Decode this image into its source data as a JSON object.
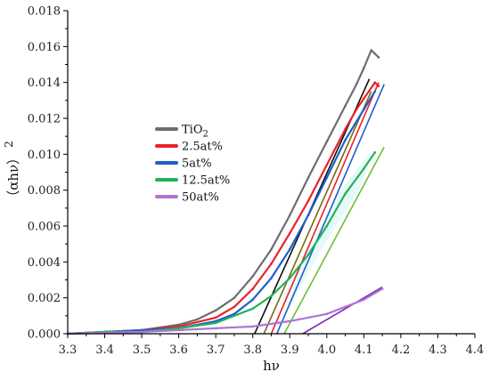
{
  "chart_data": {
    "type": "line",
    "xlabel": "hν",
    "ylabel": "（αhν）",
    "ylabel_sup": "2",
    "xlim": [
      3.3,
      4.4
    ],
    "ylim": [
      0,
      0.018
    ],
    "x_ticks": [
      3.3,
      3.4,
      3.5,
      3.6,
      3.7,
      3.8,
      3.9,
      4.0,
      4.1,
      4.2,
      4.3,
      4.4
    ],
    "y_ticks": [
      0.0,
      0.002,
      0.004,
      0.006,
      0.008,
      0.01,
      0.012,
      0.014,
      0.016,
      0.018
    ],
    "x_tick_labels": [
      "3.3",
      "3.4",
      "3.5",
      "3.6",
      "3.7",
      "3.8",
      "3.9",
      "4.0",
      "4.1",
      "4.2",
      "4.3",
      "4.4"
    ],
    "y_tick_labels": [
      "0.000",
      "0.002",
      "0.004",
      "0.006",
      "0.008",
      "0.010",
      "0.012",
      "0.014",
      "0.016",
      "0.018"
    ],
    "grid": false,
    "legend_position": "left-center",
    "series": [
      {
        "name": "TiO2",
        "label_main": "TiO",
        "label_sub": "2",
        "color": "#6e6e6e",
        "x": [
          3.3,
          3.4,
          3.5,
          3.6,
          3.65,
          3.7,
          3.75,
          3.8,
          3.85,
          3.9,
          3.95,
          4.0,
          4.05,
          4.08,
          4.1,
          4.12,
          4.13,
          4.14
        ],
        "y": [
          0.0,
          0.0001,
          0.0002,
          0.0005,
          0.0008,
          0.0013,
          0.002,
          0.0032,
          0.0047,
          0.0066,
          0.0087,
          0.0107,
          0.0127,
          0.0139,
          0.0148,
          0.0158,
          0.0156,
          0.0154
        ]
      },
      {
        "name": "2.5at%",
        "color": "#e8232a",
        "x": [
          3.3,
          3.4,
          3.5,
          3.6,
          3.7,
          3.75,
          3.8,
          3.85,
          3.9,
          3.95,
          4.0,
          4.05,
          4.08,
          4.1,
          4.13,
          4.14
        ],
        "y": [
          0.0,
          0.0001,
          0.0002,
          0.0004,
          0.0009,
          0.0015,
          0.0025,
          0.0039,
          0.0056,
          0.0074,
          0.0094,
          0.0114,
          0.0125,
          0.0131,
          0.014,
          0.0138
        ]
      },
      {
        "name": "5at%",
        "color": "#1f5fc8",
        "x": [
          3.3,
          3.4,
          3.5,
          3.6,
          3.7,
          3.75,
          3.8,
          3.85,
          3.9,
          3.95,
          4.0,
          4.05,
          4.1,
          4.13
        ],
        "y": [
          0.0,
          0.0001,
          0.0002,
          0.0003,
          0.0007,
          0.0011,
          0.0019,
          0.0031,
          0.0047,
          0.0066,
          0.0087,
          0.0108,
          0.0125,
          0.0135
        ]
      },
      {
        "name": "12.5at%",
        "color": "#22b25a",
        "x": [
          3.3,
          3.4,
          3.5,
          3.6,
          3.7,
          3.8,
          3.85,
          3.9,
          3.95,
          4.0,
          4.05,
          4.1,
          4.13
        ],
        "y": [
          0.0,
          0.0001,
          0.0001,
          0.0003,
          0.0006,
          0.0014,
          0.0021,
          0.0031,
          0.0044,
          0.006,
          0.0078,
          0.0092,
          0.0101
        ]
      },
      {
        "name": "50at%",
        "color": "#b072d8",
        "x": [
          3.3,
          3.5,
          3.7,
          3.8,
          3.9,
          4.0,
          4.05,
          4.1,
          4.15
        ],
        "y": [
          0.0,
          0.0001,
          0.0003,
          0.0004,
          0.0007,
          0.0011,
          0.0015,
          0.0019,
          0.0025
        ]
      }
    ],
    "tangent_lines": [
      {
        "color": "#111111",
        "x": [
          3.805,
          4.115
        ],
        "y": [
          0.0,
          0.0142
        ]
      },
      {
        "color": "#7a6a12",
        "x": [
          3.83,
          4.12
        ],
        "y": [
          0.0,
          0.0135
        ]
      },
      {
        "color": "#e8232a",
        "x": [
          3.85,
          4.14
        ],
        "y": [
          0.0,
          0.014
        ]
      },
      {
        "color": "#1f5fc8",
        "x": [
          3.865,
          4.155
        ],
        "y": [
          0.0,
          0.0139
        ]
      },
      {
        "color": "#6dbe35",
        "x": [
          3.885,
          4.155
        ],
        "y": [
          0.0,
          0.0104
        ]
      },
      {
        "color": "#7a2fae",
        "x": [
          3.935,
          4.15
        ],
        "y": [
          0.0,
          0.0026
        ]
      }
    ]
  }
}
